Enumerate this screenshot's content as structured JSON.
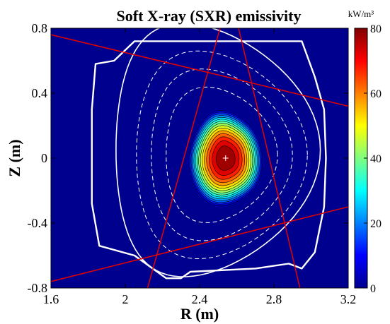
{
  "chart_data": {
    "type": "heatmap",
    "title": "Soft X-ray (SXR) emissivity",
    "xlabel": "R (m)",
    "ylabel": "Z (m)",
    "xlim": [
      1.6,
      3.2
    ],
    "ylim": [
      -0.8,
      0.8
    ],
    "x_ticks": [
      "1.6",
      "2",
      "2.4",
      "2.8",
      "3.2"
    ],
    "y_ticks": [
      "0.8",
      "0.4",
      "0",
      "-0.4",
      "-0.8"
    ],
    "colorbar": {
      "unit": "kW/m³",
      "range": [
        0,
        80
      ],
      "ticks": [
        "80",
        "60",
        "40",
        "20",
        "0"
      ],
      "colormap": "jet"
    },
    "emission_peak": {
      "R": 2.54,
      "Z": 0.0,
      "value": 80
    },
    "contour_levels": [
      5,
      10,
      15,
      20,
      25,
      30,
      35,
      40,
      45,
      50,
      55,
      60,
      65,
      70,
      75
    ],
    "first_wall": [
      [
        2.05,
        0.72
      ],
      [
        2.95,
        0.72
      ],
      [
        3.02,
        0.5
      ],
      [
        3.07,
        0.3
      ],
      [
        3.08,
        0
      ],
      [
        3.07,
        -0.3
      ],
      [
        3.02,
        -0.58
      ],
      [
        2.95,
        -0.68
      ],
      [
        2.88,
        -0.65
      ],
      [
        2.7,
        -0.68
      ],
      [
        2.35,
        -0.7
      ],
      [
        2.3,
        -0.74
      ],
      [
        2.22,
        -0.74
      ],
      [
        2.05,
        -0.6
      ],
      [
        1.86,
        -0.54
      ],
      [
        1.82,
        -0.28
      ],
      [
        1.82,
        0.3
      ],
      [
        1.84,
        0.58
      ],
      [
        1.94,
        0.6
      ]
    ],
    "separatrix": {
      "R0": 2.5,
      "Z0": 0.05,
      "a": 0.55,
      "kappa": 1.42,
      "delta": 0.35
    },
    "flux_surfaces": [
      {
        "a": 0.46
      },
      {
        "a": 0.38
      },
      {
        "a": 0.3
      }
    ],
    "lines_of_sight": [
      {
        "from": [
          1.6,
          0.76
        ],
        "to": [
          3.2,
          0.32
        ]
      },
      {
        "from": [
          1.6,
          -0.76
        ],
        "to": [
          3.2,
          -0.3
        ]
      },
      {
        "from": [
          2.51,
          0.8
        ],
        "to": [
          2.12,
          -0.8
        ]
      },
      {
        "from": [
          2.61,
          0.8
        ],
        "to": [
          2.94,
          -0.8
        ]
      }
    ],
    "colors": {
      "background": "#00008F",
      "boundary": "#FFFFFF",
      "sightline": "#E60000"
    }
  }
}
